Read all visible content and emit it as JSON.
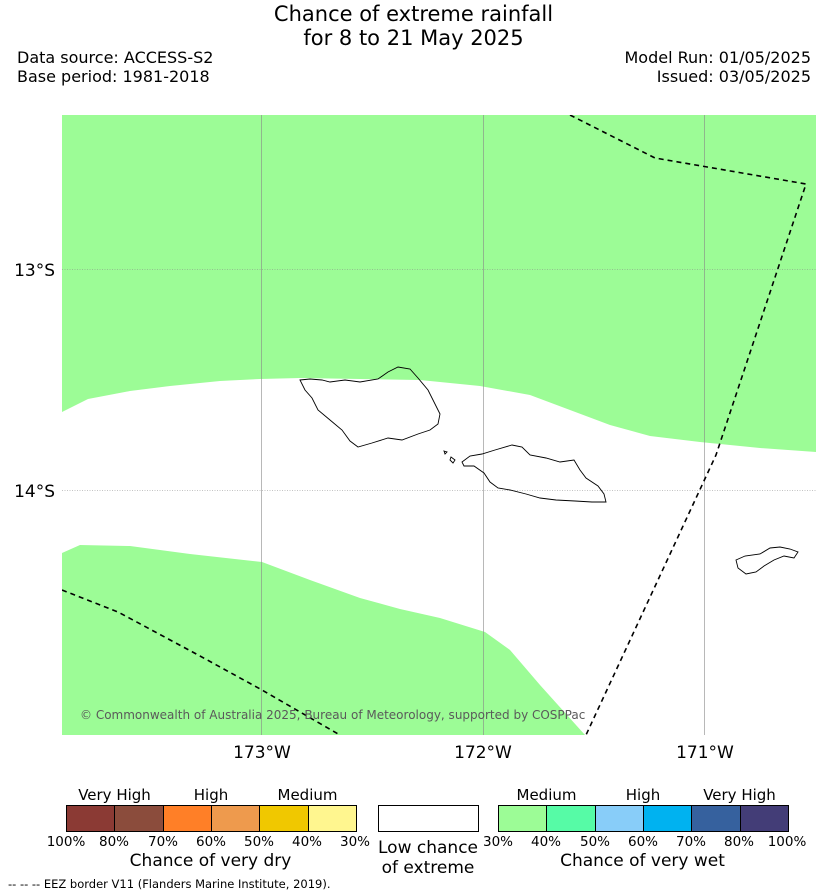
{
  "title": {
    "line1": "Chance of extreme rainfall",
    "line2": "for 8 to 21 May 2025"
  },
  "meta": {
    "data_source": "Data source: ACCESS-S2",
    "base_period": "Base period: 1981-2018",
    "model_run": "Model Run: 01/05/2025",
    "issued": "Issued: 03/05/2025"
  },
  "map": {
    "lat_labels": [
      "13°S",
      "14°S"
    ],
    "lon_labels": [
      "173°W",
      "172°W",
      "171°W"
    ],
    "copyright": "© Commonwealth of Australia 2025, Bureau of Meteorology, supported by COSPPac",
    "colors": {
      "medium_wet": "#9cfc96",
      "background": "#ffffff",
      "grid": "#888888",
      "coast": "#000000",
      "eez": "#000000"
    }
  },
  "legend": {
    "dry": {
      "heads": [
        "Very High",
        "High",
        "Medium"
      ],
      "colors": [
        "#8b3a34",
        "#8b4c3c",
        "#ff7f27",
        "#ee9a4d",
        "#f0c800",
        "#fff68f"
      ],
      "ticks": [
        "100%",
        "80%",
        "70%",
        "60%",
        "50%",
        "40%",
        "30%"
      ],
      "caption": "Chance of very dry"
    },
    "neutral": {
      "color": "#ffffff",
      "caption_line1": "Low chance",
      "caption_line2": "of extreme"
    },
    "wet": {
      "heads": [
        "Medium",
        "High",
        "Very High"
      ],
      "colors": [
        "#9cfc96",
        "#56fba6",
        "#88cdf9",
        "#00b2f0",
        "#36619e",
        "#433d77"
      ],
      "ticks": [
        "30%",
        "40%",
        "50%",
        "60%",
        "70%",
        "80%",
        "100%"
      ],
      "caption": "Chance of very wet"
    }
  },
  "footnote": "-- -- -- EEZ border V11 (Flanders Marine Institute, 2019)."
}
